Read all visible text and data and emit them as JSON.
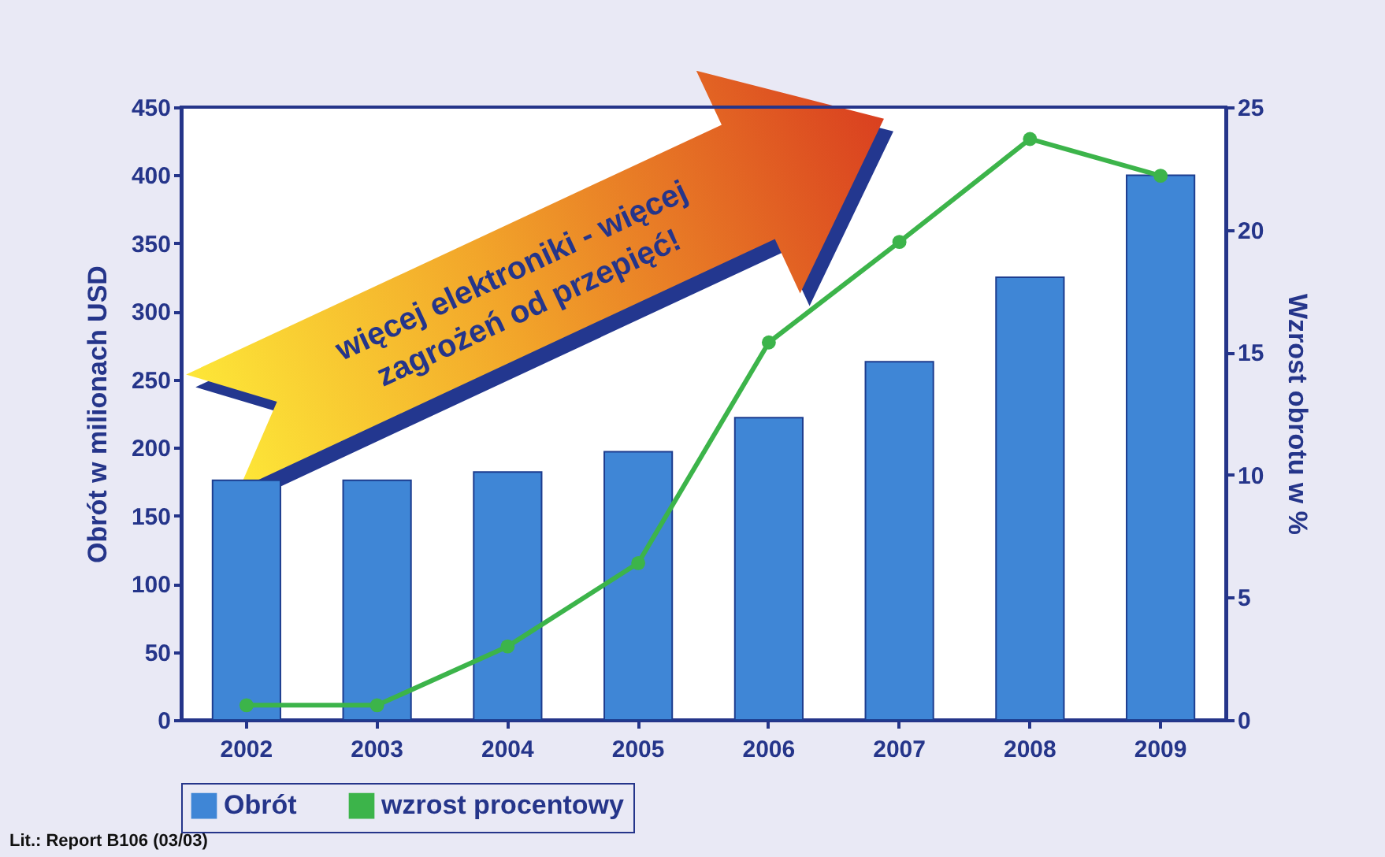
{
  "chart_data": {
    "type": "bar",
    "ylabel": "Obrót w  milionach USD",
    "y2label": "Wzrost obrotu w %",
    "categories": [
      "2002",
      "2003",
      "2004",
      "2005",
      "2006",
      "2007",
      "2008",
      "2009"
    ],
    "series": [
      {
        "name": "Obrót",
        "type": "bar",
        "color": "#3f86d6",
        "values": [
          176,
          176,
          182,
          197,
          222,
          263,
          325,
          400
        ]
      },
      {
        "name": "wzrost procentowy",
        "type": "line",
        "axis": "y2",
        "color": "#3cb44a",
        "values": [
          0.6,
          0.6,
          3.0,
          6.4,
          15.4,
          19.5,
          23.7,
          22.2
        ]
      }
    ],
    "ylim": [
      0,
      450
    ],
    "yticks": [
      0,
      50,
      100,
      150,
      200,
      250,
      300,
      350,
      400,
      450
    ],
    "y2lim": [
      0,
      25
    ],
    "y2ticks": [
      0,
      5,
      10,
      15,
      20,
      25
    ],
    "marker": "circle",
    "legend": "bottom",
    "annotations": [
      "więcej elektroniki - więcej",
      "zagrożeń od przepięć!",
      "Lit.: Report B106 (03/03)"
    ]
  }
}
